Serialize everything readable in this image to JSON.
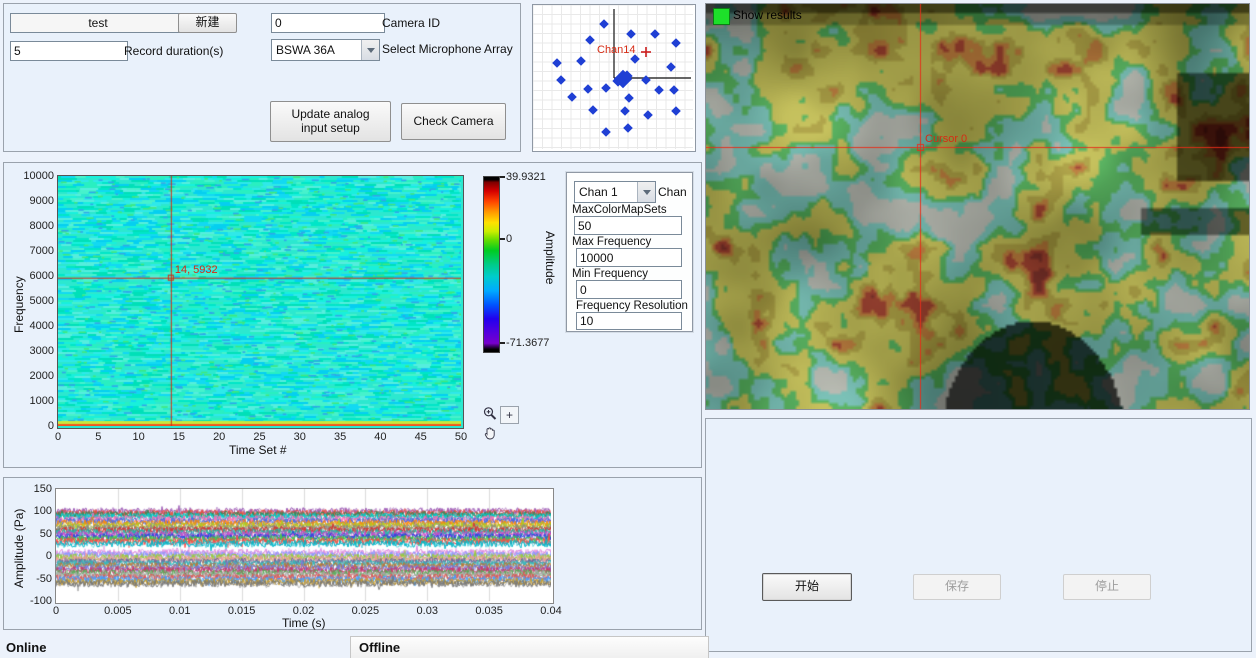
{
  "setup_panel": {
    "test_value": "test",
    "new_button": "新建",
    "camera_id_value": "0",
    "camera_id_label": "Camera ID",
    "record_duration_value": "5",
    "record_duration_label": "Record duration(s)",
    "mic_array_value": "BSWA 36A",
    "mic_array_label": "Select Microphone Array",
    "update_button": "Update analog input setup",
    "check_camera_button": "Check Camera"
  },
  "camera_view": {
    "show_results_label": "Show results",
    "cursor_label": "Cursor 0",
    "led_color": "#1de02a",
    "cursor_color": "#e03020"
  },
  "channel_panel": {
    "chan_value": "Chan 1",
    "chan_label": "Chan",
    "fields": [
      {
        "label": "MaxColorMapSets",
        "value": "50"
      },
      {
        "label": "Max Frequency",
        "value": "10000"
      },
      {
        "label": "Min Frequency",
        "value": "0"
      },
      {
        "label": "Frequency Resolution",
        "value": "10"
      }
    ]
  },
  "controls": {
    "start_button": "开始",
    "save_button": "保存",
    "stop_button": "停止"
  },
  "status": {
    "online": "Online",
    "offline": "Offline"
  },
  "icons": {
    "zoom_tool": "magnifier-with-plus",
    "cursor_tool": "+",
    "pan_tool": "hand",
    "dropdown_arrow": "chevron-down",
    "show_results_led": "green-square"
  },
  "chart_data": [
    {
      "type": "scatter",
      "name": "microphone-array-layout",
      "cursor_label": "Chan14",
      "cursor_point": [
        113,
        47
      ],
      "cluster_center": [
        90,
        74
      ],
      "axis_origin": [
        81,
        73
      ],
      "dot_color": "#1f3fd4",
      "points": [
        [
          71,
          19
        ],
        [
          98,
          29
        ],
        [
          122,
          29
        ],
        [
          57,
          35
        ],
        [
          143,
          38
        ],
        [
          48,
          56
        ],
        [
          24,
          58
        ],
        [
          102,
          54
        ],
        [
          138,
          62
        ],
        [
          28,
          75
        ],
        [
          113,
          75
        ],
        [
          55,
          84
        ],
        [
          73,
          83
        ],
        [
          126,
          85
        ],
        [
          141,
          85
        ],
        [
          39,
          92
        ],
        [
          96,
          93
        ],
        [
          60,
          105
        ],
        [
          92,
          106
        ],
        [
          115,
          110
        ],
        [
          143,
          106
        ],
        [
          73,
          127
        ],
        [
          95,
          123
        ]
      ]
    },
    {
      "type": "heatmap",
      "name": "spectrogram",
      "xlabel": "Time Set #",
      "ylabel": "Frequency",
      "x_range": [
        0,
        50
      ],
      "y_range": [
        0,
        10000
      ],
      "x_ticks": [
        "0",
        "5",
        "10",
        "15",
        "20",
        "25",
        "30",
        "35",
        "40",
        "45",
        "50"
      ],
      "y_ticks": [
        "0",
        "1000",
        "2000",
        "3000",
        "4000",
        "5000",
        "6000",
        "7000",
        "8000",
        "9000",
        "10000"
      ],
      "cursor": {
        "x": 14,
        "y": 5932,
        "label": "14, 5932"
      },
      "colorbar": {
        "label": "Amplitude",
        "max": "39.9321",
        "zero": "0",
        "min": "-71.3677",
        "zero_frac_from_top": 0.36
      },
      "base_color": "#2ce8cf"
    },
    {
      "type": "line",
      "name": "time-waveforms",
      "xlabel": "Time (s)",
      "ylabel": "Amplitude (Pa)",
      "x_range": [
        0,
        0.04
      ],
      "y_range": [
        -100,
        150
      ],
      "x_ticks": [
        "0",
        "0.005",
        "0.01",
        "0.015",
        "0.02",
        "0.025",
        "0.03",
        "0.035",
        "0.04"
      ],
      "y_ticks": [
        "150",
        "100",
        "50",
        "0",
        "-50",
        "-100"
      ],
      "noise_amp_pa": 8,
      "trace_offsets_pa": [
        100,
        96,
        92,
        88,
        83,
        78,
        73,
        68,
        63,
        58,
        53,
        48,
        43,
        38,
        33,
        28,
        8,
        3,
        -2,
        -7,
        -12,
        -17,
        -22,
        -27,
        -32,
        -37,
        -42,
        -47,
        -52,
        -57,
        -61
      ],
      "palette": [
        "#9b59b6",
        "#e74c3c",
        "#2e8b57",
        "#00ced1",
        "#ff69b4",
        "#4169e1",
        "#ff8c00",
        "#adcc22",
        "#888888",
        "#d62f2f",
        "#20b2aa",
        "#cc44cc",
        "#2244dd",
        "#44cc44",
        "#ff4444",
        "#00b7c9",
        "#dd88dd",
        "#8899ff",
        "#99cc33",
        "#ee9999",
        "#666699",
        "#33bbbb",
        "#bb7733",
        "#7777dd",
        "#cc3366",
        "#55aa55",
        "#aaaaaa",
        "#dd5555",
        "#3fa0ff",
        "#c89b2a",
        "#777777"
      ]
    }
  ]
}
